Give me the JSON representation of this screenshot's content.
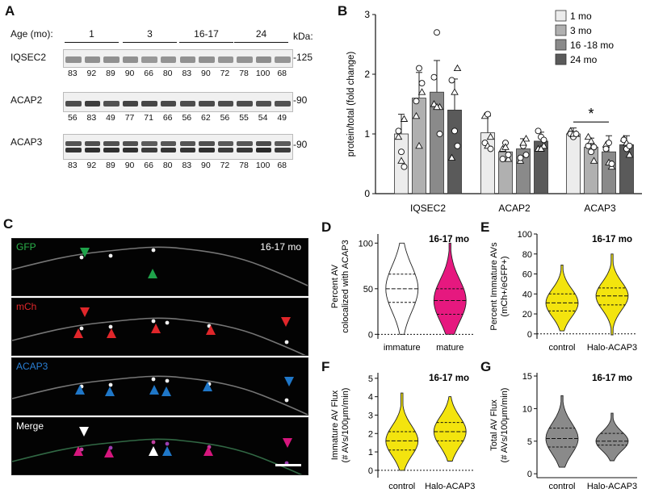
{
  "panels": {
    "A": "A",
    "B": "B",
    "C": "C",
    "D": "D",
    "E": "E",
    "F": "F",
    "G": "G"
  },
  "westerns": {
    "age_label": "Age (mo):",
    "kda_label": "kDa:",
    "age_groups": [
      "1",
      "3",
      "16-17",
      "24"
    ],
    "blots": [
      {
        "name": "IQSEC2",
        "marker": "-125",
        "values": [
          "83",
          "92",
          "89",
          "90",
          "66",
          "80",
          "83",
          "90",
          "72",
          "78",
          "100",
          "68"
        ]
      },
      {
        "name": "ACAP2",
        "marker": "-90",
        "values": [
          "56",
          "83",
          "49",
          "77",
          "71",
          "66",
          "56",
          "62",
          "56",
          "55",
          "54",
          "49"
        ]
      },
      {
        "name": "ACAP3",
        "marker": "-90",
        "values": [
          "83",
          "92",
          "89",
          "90",
          "66",
          "80",
          "83",
          "90",
          "72",
          "78",
          "100",
          "68"
        ]
      }
    ]
  },
  "microscopy": {
    "age_label": "16-17 mo",
    "channels": [
      {
        "name": "GFP",
        "color": "#2ab34a"
      },
      {
        "name": "mCh",
        "color": "#e0262a"
      },
      {
        "name": "ACAP3",
        "color": "#2a7fd4"
      },
      {
        "name": "Merge",
        "color": "#ffffff"
      }
    ],
    "arrow_colors": {
      "green": "#1fa24a",
      "red": "#e0262a",
      "blue": "#1f77c8",
      "white": "#ffffff",
      "magenta": "#d6167d"
    }
  },
  "chart_data": [
    {
      "id": "B",
      "type": "bar",
      "ylabel": "protein/total (fold change)",
      "ylim": [
        0,
        3
      ],
      "yticks": [
        "0",
        "1",
        "2",
        "3"
      ],
      "categories": [
        "IQSEC2",
        "ACAP2",
        "ACAP3"
      ],
      "legend": [
        "1 mo",
        "3 mo",
        "16 -18 mo",
        "24 mo"
      ],
      "legend_position": "top-right",
      "colors": [
        "#ececec",
        "#b0b0b0",
        "#8a8a8a",
        "#5a5a5a"
      ],
      "series": [
        {
          "name": "1 mo",
          "values": [
            1.0,
            1.02,
            1.0
          ],
          "err": [
            0.33,
            0.28,
            0.1
          ]
        },
        {
          "name": "3 mo",
          "values": [
            1.6,
            0.7,
            0.78
          ],
          "err": [
            0.43,
            0.15,
            0.15
          ]
        },
        {
          "name": "16 -18 mo",
          "values": [
            1.7,
            0.75,
            0.7
          ],
          "err": [
            0.53,
            0.17,
            0.27
          ]
        },
        {
          "name": "24 mo",
          "values": [
            1.4,
            0.88,
            0.82
          ],
          "err": [
            0.52,
            0.15,
            0.15
          ]
        }
      ],
      "points": [
        [
          [
            0.95,
            0.7,
            1.25,
            1.05,
            0.55,
            0.45
          ],
          [
            1.3,
            2.1,
            1.7,
            1.55,
            0.8,
            1.85
          ],
          [
            1.5,
            2.7,
            1.45,
            1.95,
            1.45,
            1.0
          ],
          [
            0.6,
            1.05,
            2.1,
            1.9,
            1.7,
            0.8
          ]
        ],
        [
          [
            1.3,
            1.33,
            0.95,
            0.85,
            0.8,
            0.75
          ],
          [
            0.75,
            0.85,
            0.58,
            0.58,
            0.78,
            0.65
          ],
          [
            0.55,
            0.8,
            0.92,
            0.6,
            0.85,
            0.65
          ],
          [
            0.75,
            0.95,
            0.8,
            1.05,
            0.75,
            0.9
          ]
        ],
        [
          [
            1.05,
            0.95,
            1.0,
            1.0,
            1.0,
            1.0
          ],
          [
            0.95,
            0.7,
            0.55,
            0.8,
            0.88,
            0.78
          ],
          [
            0.82,
            0.85,
            0.45,
            0.75,
            0.52,
            0.5
          ],
          [
            0.92,
            0.75,
            0.65,
            0.9,
            0.85,
            0.8
          ]
        ]
      ],
      "marker_shapes": [
        "triangle",
        "circle"
      ],
      "annotation": "*"
    },
    {
      "id": "D",
      "type": "violin",
      "title": "16-17 mo",
      "ylabel": "Percent AV\ncolocalized with ACAP3",
      "ylim": [
        -5,
        110
      ],
      "yticks": [
        "0",
        "50",
        "100"
      ],
      "categories": [
        "immature",
        "mature"
      ],
      "colors": [
        "#ffffff",
        "#e6187f"
      ],
      "stats": [
        {
          "min": 0,
          "q1": 35,
          "median": 50,
          "q3": 66,
          "max": 100
        },
        {
          "min": 0,
          "q1": 22,
          "median": 37,
          "q3": 50,
          "max": 100
        }
      ]
    },
    {
      "id": "E",
      "type": "violin",
      "title": "16-17 mo",
      "ylabel": "Percent Immature AVs\n(mCh+/eGFP+)",
      "ylim": [
        -5,
        100
      ],
      "yticks": [
        "0",
        "20",
        "40",
        "60",
        "80",
        "100"
      ],
      "categories": [
        "control",
        "Halo-ACAP3"
      ],
      "colors": [
        "#f3e40e",
        "#f3e40e"
      ],
      "stats": [
        {
          "min": 3,
          "q1": 23,
          "median": 31,
          "q3": 40,
          "max": 69
        },
        {
          "min": -1,
          "q1": 29,
          "median": 38,
          "q3": 46,
          "max": 80
        }
      ]
    },
    {
      "id": "F",
      "type": "violin",
      "title": "16-17 mo",
      "ylabel": "Immature AV Flux\n(# AVs/100μm/min)",
      "ylim": [
        -0.4,
        5.3
      ],
      "yticks": [
        "0",
        "1",
        "2",
        "3",
        "4",
        "5"
      ],
      "categories": [
        "control",
        "Halo-ACAP3"
      ],
      "colors": [
        "#f3e40e",
        "#f3e40e"
      ],
      "stats": [
        {
          "min": 0.0,
          "q1": 1.1,
          "median": 1.6,
          "q3": 2.1,
          "max": 4.2
        },
        {
          "min": 0.5,
          "q1": 1.6,
          "median": 2.1,
          "q3": 2.6,
          "max": 4.0
        }
      ]
    },
    {
      "id": "G",
      "type": "violin",
      "title": "16-17 mo",
      "ylabel": "Total AV Flux\n(# AVs/100μm/min)",
      "ylim": [
        -0.6,
        15.5
      ],
      "yticks": [
        "0",
        "5",
        "10",
        "15"
      ],
      "categories": [
        "control",
        "Halo-ACAP3"
      ],
      "colors": [
        "#8a8a8a",
        "#8a8a8a"
      ],
      "stats": [
        {
          "min": 1.0,
          "q1": 4.1,
          "median": 5.4,
          "q3": 7.0,
          "max": 12.0
        },
        {
          "min": 2.0,
          "q1": 4.4,
          "median": 5.0,
          "q3": 6.2,
          "max": 9.3
        }
      ]
    }
  ]
}
